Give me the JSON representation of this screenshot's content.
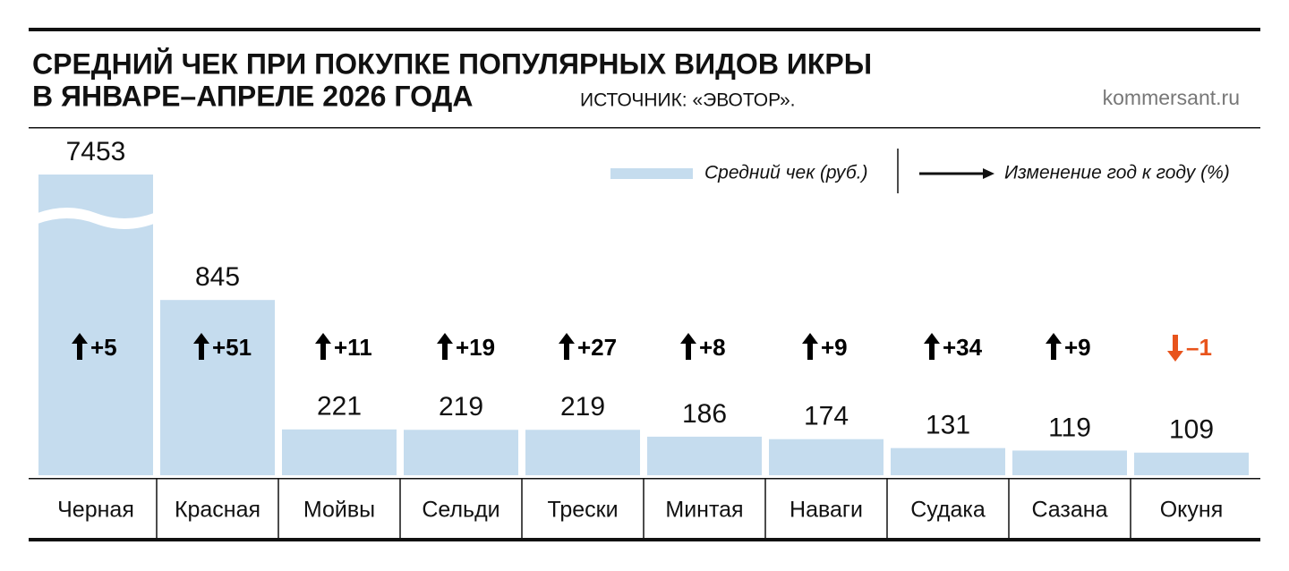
{
  "title": "СРЕДНИЙ ЧЕК ПРИ ПОКУПКЕ ПОПУЛЯРНЫХ ВИДОВ ИКРЫ",
  "title_line2": "В ЯНВАРЕ–АПРЕЛЕ 2026 ГОДА",
  "source": "ИСТОЧНИК: «ЭВОТОР».",
  "site": "kommersant.ru",
  "chart_data": {
    "type": "bar",
    "categories": [
      "Черная",
      "Красная",
      "Мойвы",
      "Сельди",
      "Трески",
      "Минтая",
      "Наваги",
      "Судака",
      "Сазана",
      "Окуня"
    ],
    "series": [
      {
        "name": "Средний чек (руб.)",
        "color": "#c5dcee",
        "values": [
          7453,
          845,
          221,
          219,
          219,
          186,
          174,
          131,
          119,
          109
        ]
      },
      {
        "name": "Изменение год к году (%)",
        "color": "#000000",
        "negative_color": "#e8541c",
        "values": [
          5,
          51,
          11,
          19,
          27,
          8,
          9,
          34,
          9,
          -1
        ],
        "value_labels": [
          "+5",
          "+51",
          "+11",
          "+19",
          "+27",
          "+8",
          "+9",
          "+34",
          "+9",
          "–1"
        ]
      }
    ],
    "ylim": [
      0,
      1450
    ],
    "axis_break": true
  }
}
